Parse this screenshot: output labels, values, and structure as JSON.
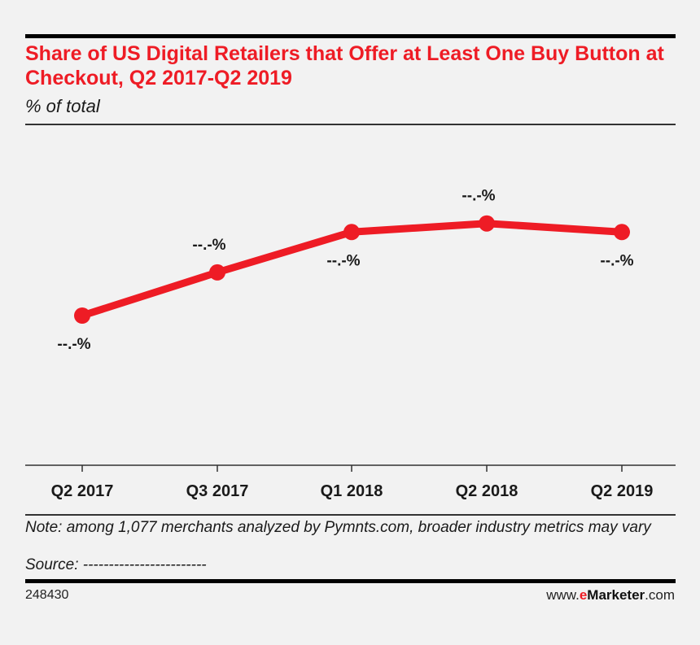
{
  "header": {
    "title": "Share of US Digital Retailers that Offer at Least One Buy Button at Checkout, Q2 2017-Q2 2019",
    "subtitle": "% of total"
  },
  "chart_data": {
    "type": "line",
    "categories": [
      "Q2 2017",
      "Q3 2017",
      "Q1 2018",
      "Q2 2018",
      "Q2 2019"
    ],
    "values": [
      22,
      37,
      51,
      54,
      51
    ],
    "data_labels": [
      "--.-%",
      "--.-%",
      "--.-%",
      "--.-%",
      "--.-%"
    ],
    "ylim": [
      -30,
      85
    ],
    "grid": false,
    "line_color": "#ee1c25"
  },
  "footer": {
    "note": "Note: among 1,077 merchants analyzed by Pymnts.com, broader industry metrics may vary",
    "source": "Source: ------------------------",
    "chart_id": "248430",
    "brand_prefix": "www.",
    "brand_e": "e",
    "brand_name": "Marketer",
    "brand_suffix": ".com"
  }
}
